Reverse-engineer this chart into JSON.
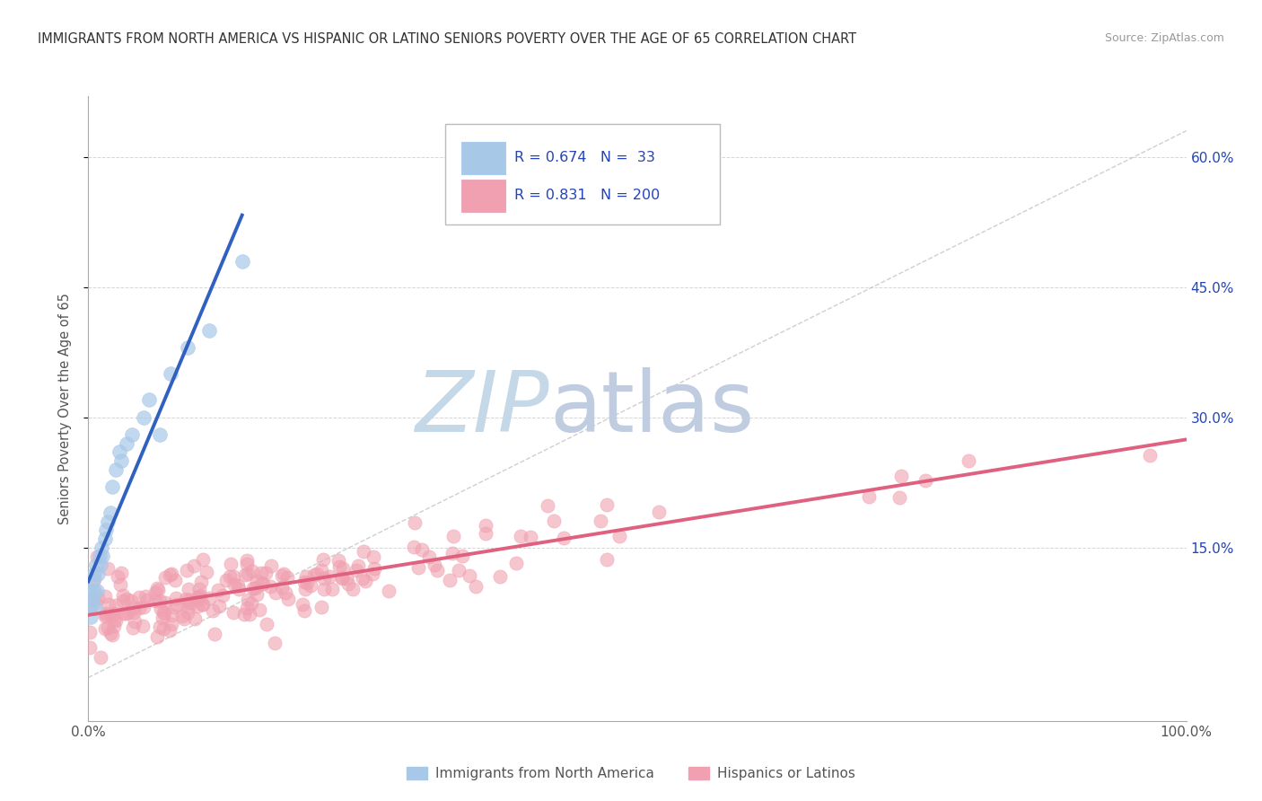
{
  "title": "IMMIGRANTS FROM NORTH AMERICA VS HISPANIC OR LATINO SENIORS POVERTY OVER THE AGE OF 65 CORRELATION CHART",
  "source": "Source: ZipAtlas.com",
  "ylabel": "Seniors Poverty Over the Age of 65",
  "xlim": [
    0,
    1
  ],
  "ylim": [
    -0.05,
    0.67
  ],
  "xtick_positions": [
    0.0,
    1.0
  ],
  "xtick_labels": [
    "0.0%",
    "100.0%"
  ],
  "ytick_vals_right": [
    0.15,
    0.3,
    0.45,
    0.6
  ],
  "ytick_labels_right": [
    "15.0%",
    "30.0%",
    "45.0%",
    "60.0%"
  ],
  "r_blue": 0.674,
  "n_blue": 33,
  "r_pink": 0.831,
  "n_pink": 200,
  "blue_color": "#A8C8E8",
  "pink_color": "#F0A0B0",
  "blue_line_color": "#3060C0",
  "pink_line_color": "#E06080",
  "diag_color": "#BBBBBB",
  "watermark_zip_color": "#C5D8E8",
  "watermark_atlas_color": "#C0CCE0",
  "background_color": "#FFFFFF",
  "grid_color": "#CCCCCC",
  "title_color": "#333333",
  "source_color": "#999999",
  "legend_color": "#2244BB",
  "blue_scatter_x": [
    0.001,
    0.002,
    0.003,
    0.003,
    0.004,
    0.004,
    0.005,
    0.005,
    0.006,
    0.007,
    0.008,
    0.009,
    0.01,
    0.011,
    0.012,
    0.013,
    0.015,
    0.016,
    0.018,
    0.02,
    0.022,
    0.025,
    0.028,
    0.03,
    0.035,
    0.04,
    0.05,
    0.055,
    0.065,
    0.075,
    0.09,
    0.11,
    0.14
  ],
  "blue_scatter_y": [
    0.08,
    0.07,
    0.1,
    0.09,
    0.11,
    0.09,
    0.12,
    0.1,
    0.08,
    0.13,
    0.1,
    0.12,
    0.14,
    0.13,
    0.15,
    0.14,
    0.16,
    0.17,
    0.18,
    0.19,
    0.22,
    0.24,
    0.26,
    0.25,
    0.27,
    0.28,
    0.3,
    0.32,
    0.28,
    0.35,
    0.38,
    0.4,
    0.48
  ],
  "pink_scatter_seed": 123
}
